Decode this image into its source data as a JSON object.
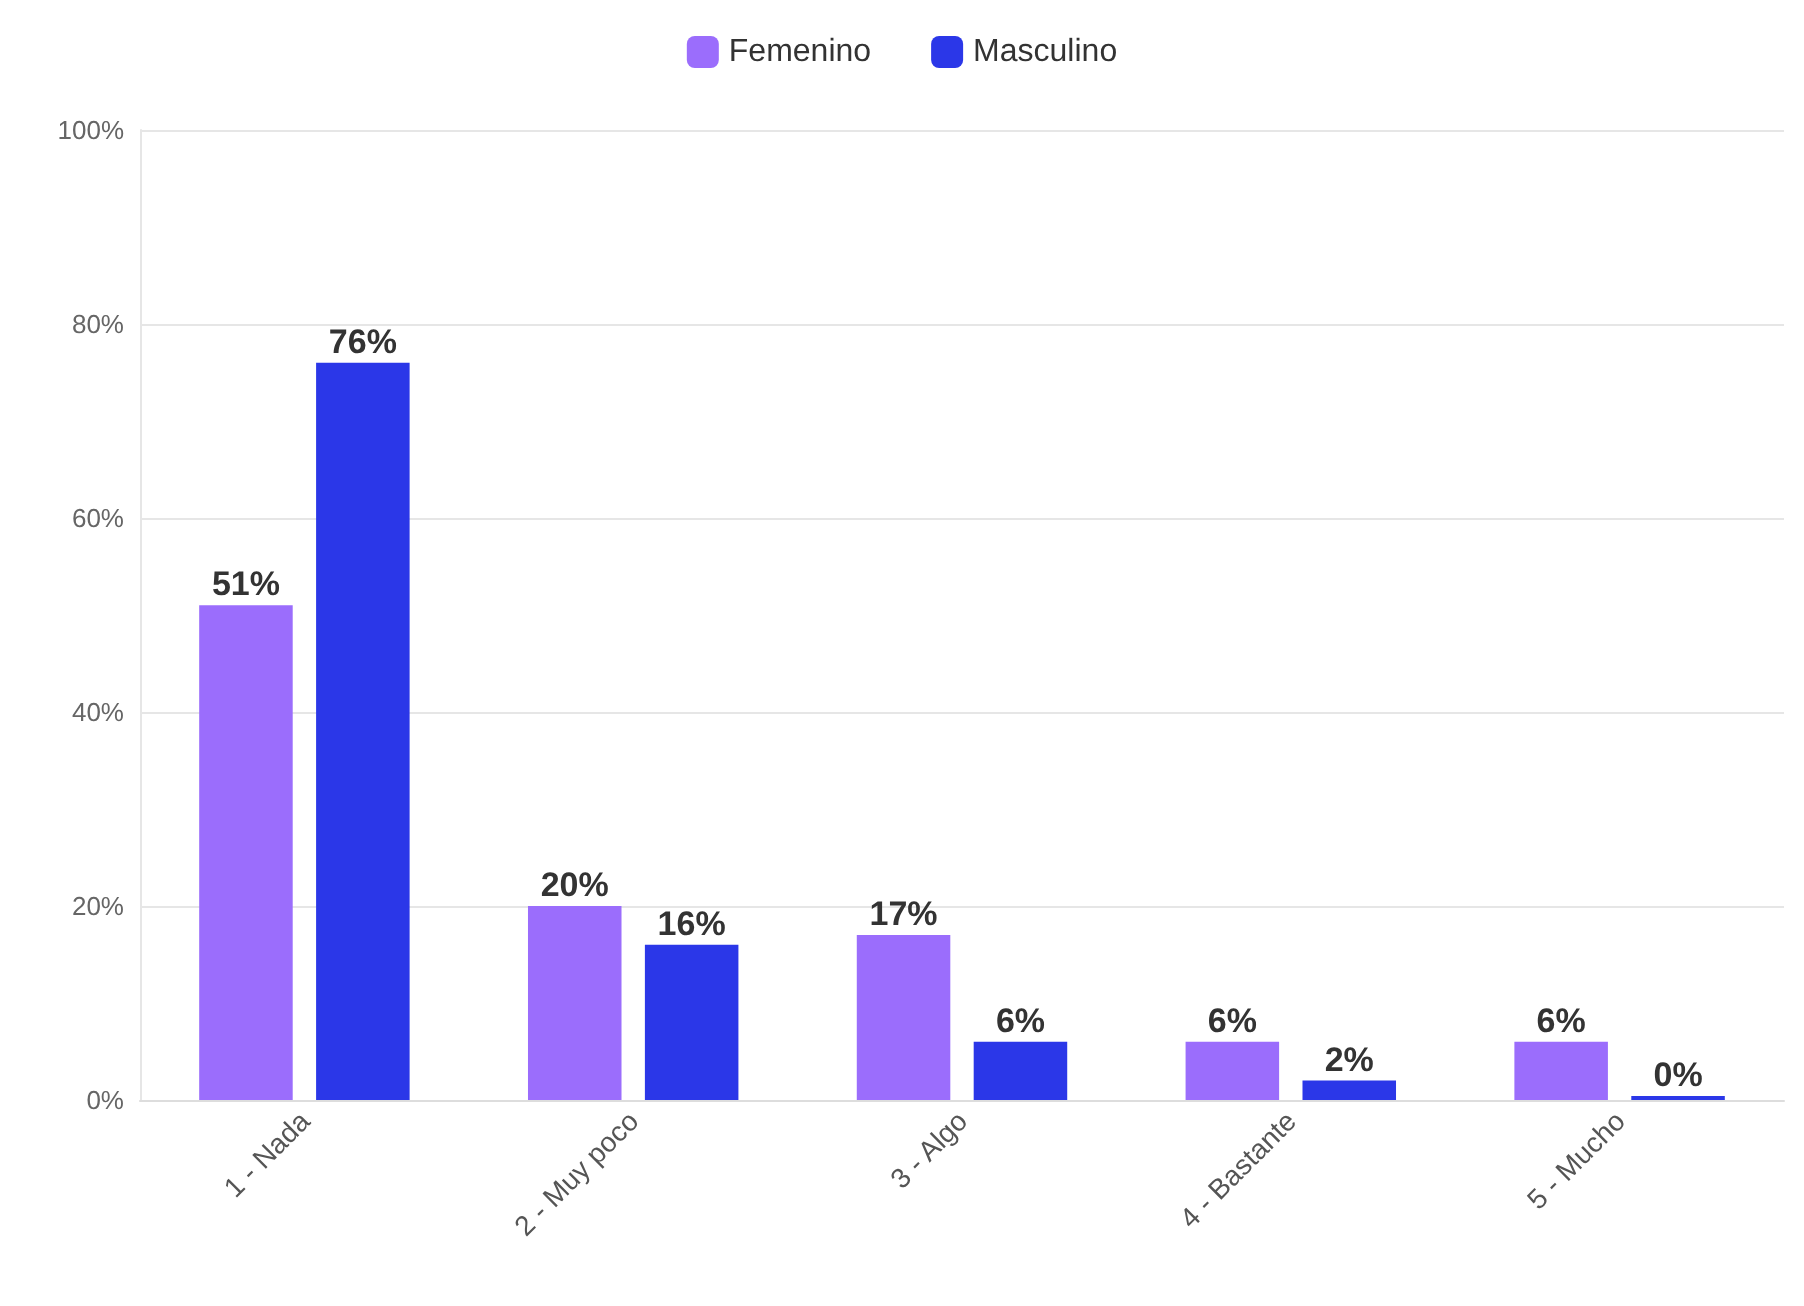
{
  "chart_data": {
    "type": "bar",
    "categories": [
      "1 - Nada",
      "2 - Muy poco",
      "3 - Algo",
      "4 - Bastante",
      "5 - Mucho"
    ],
    "series": [
      {
        "name": "Femenino",
        "color": "#9b6dfc",
        "values": [
          51,
          20,
          17,
          6,
          6
        ],
        "value_labels": [
          "51%",
          "20%",
          "17%",
          "6%",
          "6%"
        ]
      },
      {
        "name": "Masculino",
        "color": "#2b37e8",
        "values": [
          76,
          16,
          6,
          2,
          0
        ],
        "value_labels": [
          "76%",
          "16%",
          "6%",
          "2%",
          "0%"
        ]
      }
    ],
    "ylim": [
      0,
      100
    ],
    "yticks": [
      {
        "value": 0,
        "label": "0%"
      },
      {
        "value": 20,
        "label": "20%"
      },
      {
        "value": 40,
        "label": "40%"
      },
      {
        "value": 60,
        "label": "60%"
      },
      {
        "value": 80,
        "label": "80%"
      },
      {
        "value": 100,
        "label": "100%"
      }
    ],
    "grid": "y",
    "legend": "top"
  }
}
